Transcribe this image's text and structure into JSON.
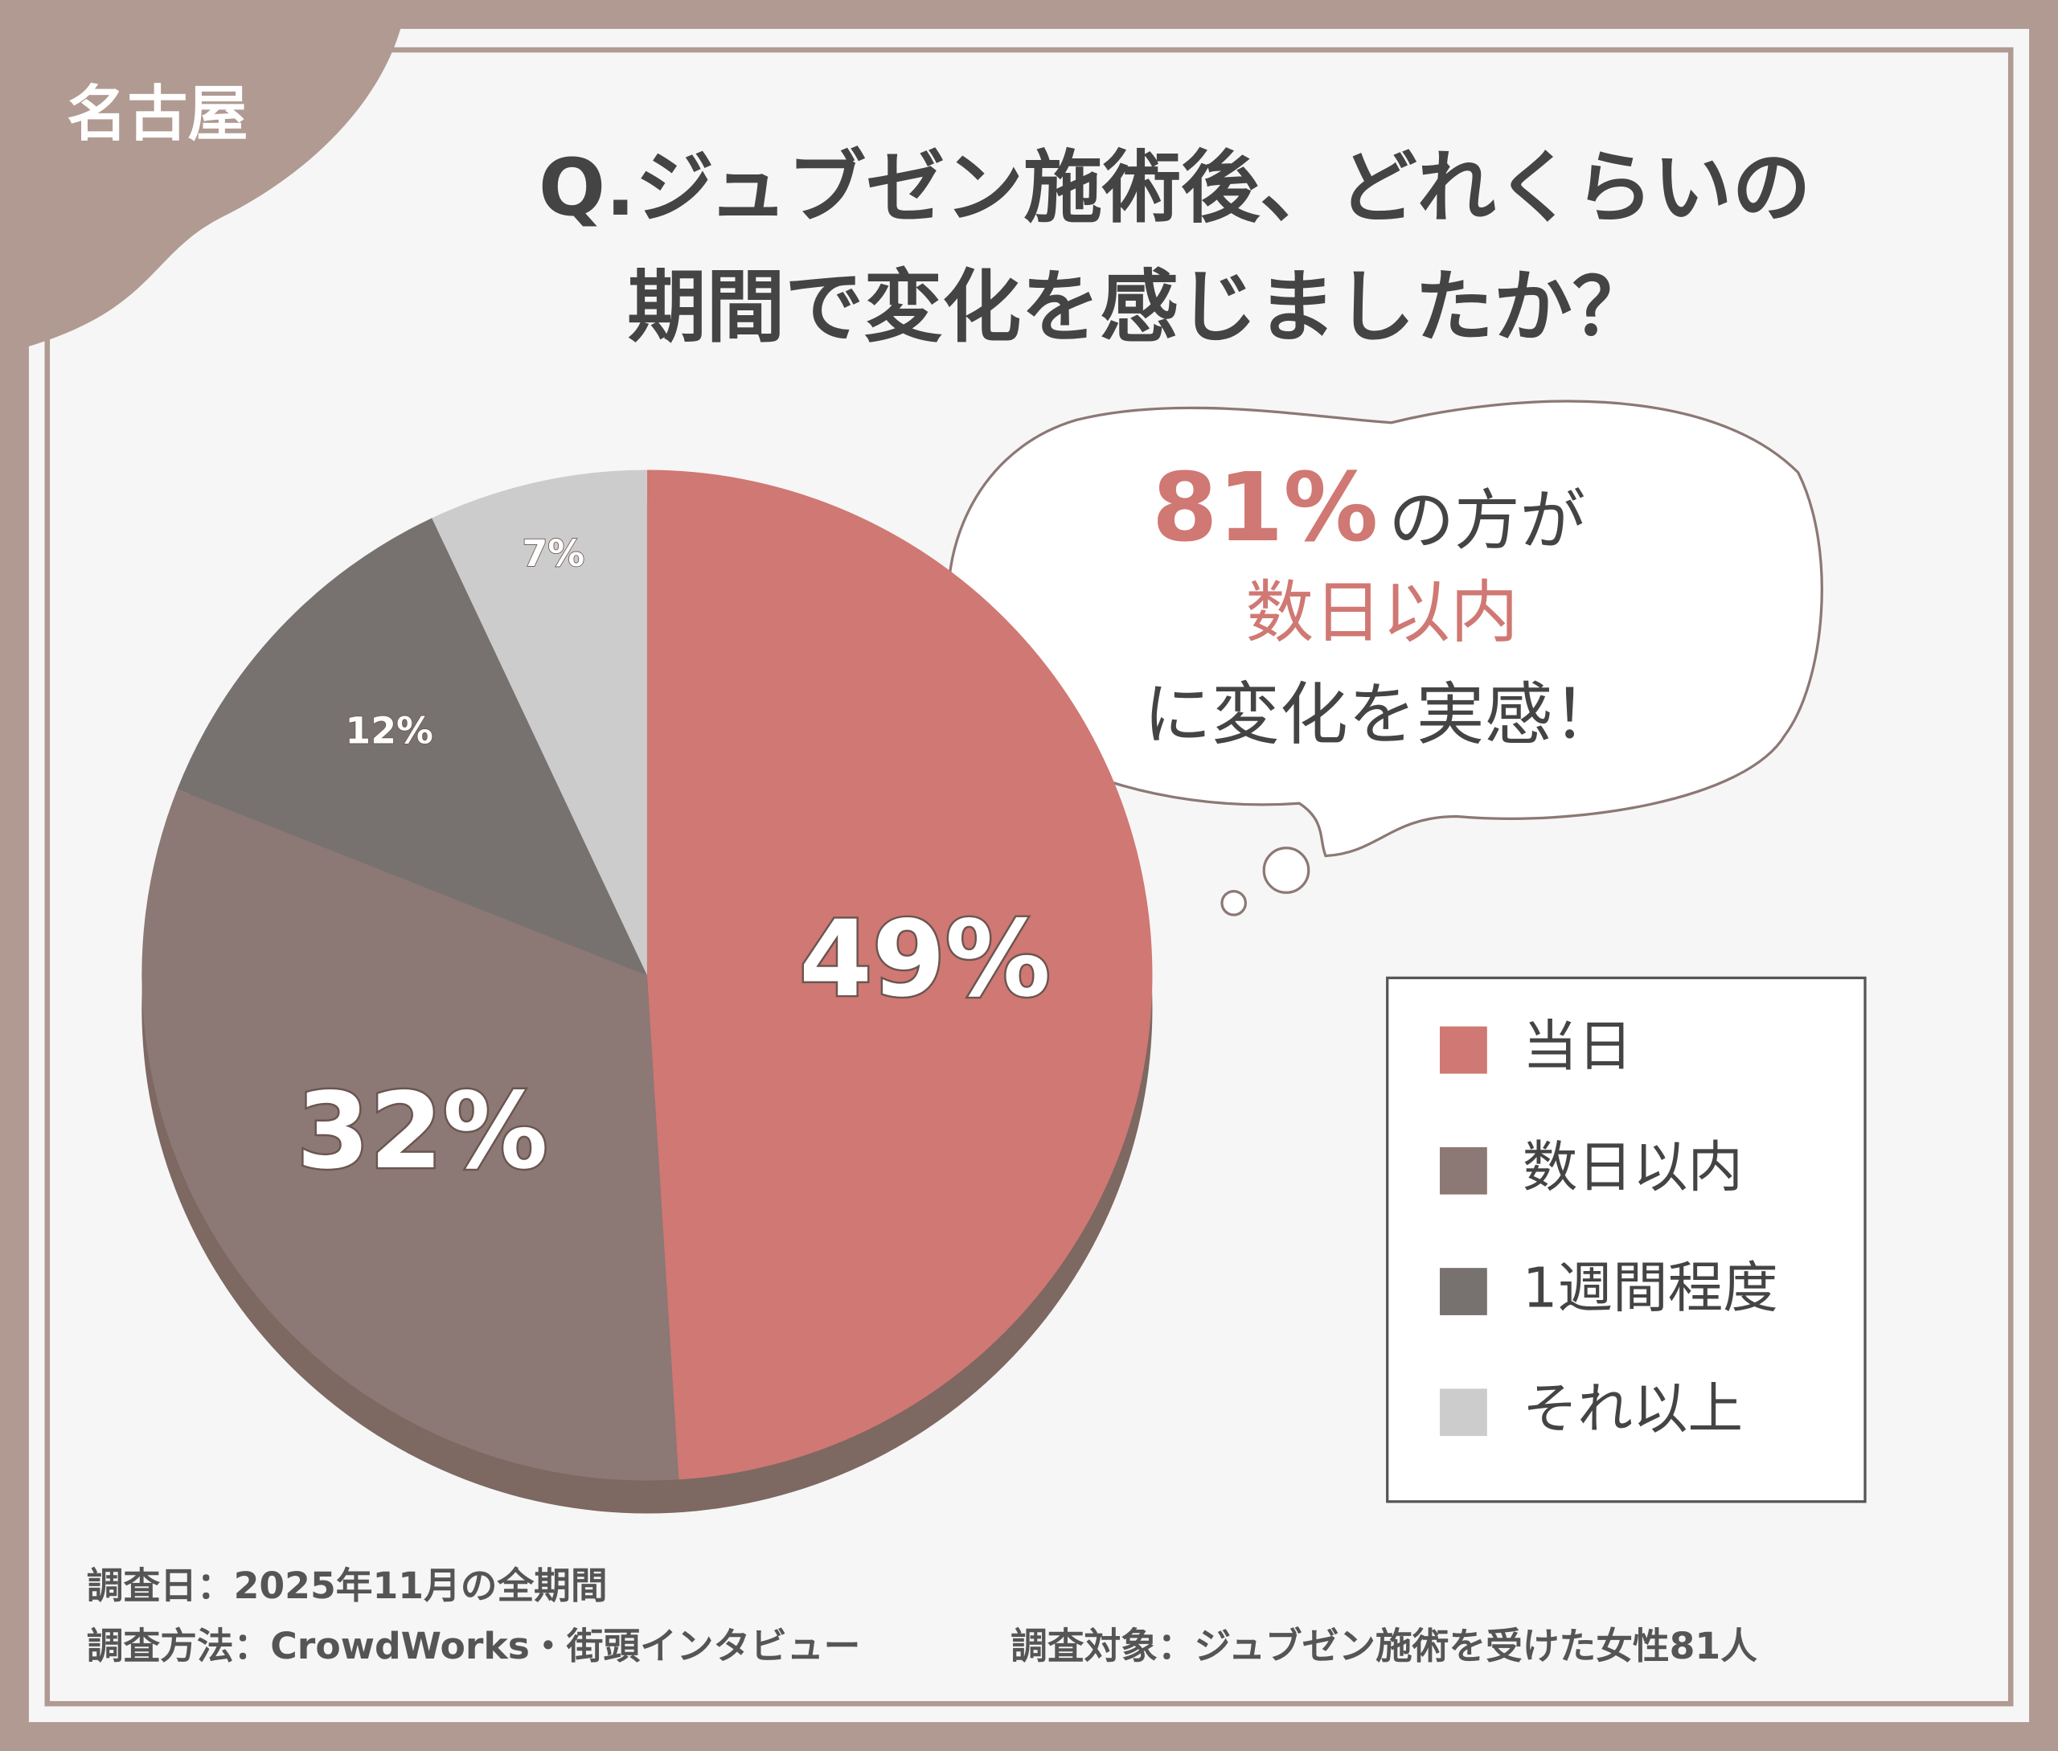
{
  "chart_data": {
    "type": "pie",
    "tag": "名古屋",
    "title": [
      "Q.ジュブゼン施術後、どれくらいの",
      "期間で変化を感じましたか？"
    ],
    "annotation": [
      "81%",
      "の方が",
      "数日以内",
      "に変化を実感！"
    ],
    "categories": [
      "当日",
      "数日以内",
      "1週間程度",
      "それ以上"
    ],
    "values": [
      49,
      32,
      12,
      7
    ],
    "value_labels": [
      "49%",
      "32%",
      "12%",
      "7%"
    ],
    "colors": [
      "#d07873",
      "#8c7875",
      "#777270",
      "#cccccc"
    ],
    "legend": "right",
    "footnotes": [
      "調査日：2025年11月の全期間",
      "調査方法：CrowdWorks・街頭インタビュー",
      "調査対象：ジュブゼン施術を受けた女性81人"
    ]
  }
}
